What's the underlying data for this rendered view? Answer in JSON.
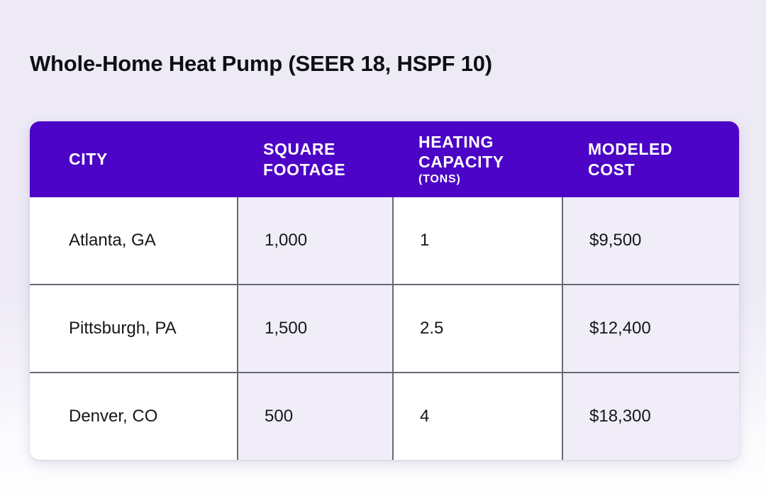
{
  "page": {
    "title": "Whole-Home Heat Pump (SEER 18, HSPF 10)",
    "colors": {
      "background": "#edeaf6",
      "header_bg": "#4c04c6",
      "header_text": "#ffffff",
      "cell_bg": "#ffffff",
      "cell_alt_bg": "#f0edf9",
      "grid_border": "#6b6875",
      "text": "#17161b"
    }
  },
  "table": {
    "columns": [
      {
        "label": "CITY",
        "sublabel": ""
      },
      {
        "label": "SQUARE FOOTAGE",
        "sublabel": ""
      },
      {
        "label": "HEATING CAPACITY",
        "sublabel": "(TONS)"
      },
      {
        "label": "MODELED COST",
        "sublabel": ""
      }
    ],
    "rows": [
      {
        "city": "Atlanta, GA",
        "square_footage": "1,000",
        "heating_capacity": "1",
        "modeled_cost": "$9,500"
      },
      {
        "city": "Pittsburgh, PA",
        "square_footage": "1,500",
        "heating_capacity": "2.5",
        "modeled_cost": "$12,400"
      },
      {
        "city": "Denver, CO",
        "square_footage": "500",
        "heating_capacity": "4",
        "modeled_cost": "$18,300"
      }
    ]
  },
  "chart_data": {
    "type": "table",
    "title": "Whole-Home Heat Pump (SEER 18, HSPF 10)",
    "columns": [
      "CITY",
      "SQUARE FOOTAGE",
      "HEATING CAPACITY (TONS)",
      "MODELED COST"
    ],
    "rows": [
      [
        "Atlanta, GA",
        "1,000",
        "1",
        "$9,500"
      ],
      [
        "Pittsburgh, PA",
        "1,500",
        "2.5",
        "$12,400"
      ],
      [
        "Denver, CO",
        "500",
        "4",
        "$18,300"
      ]
    ],
    "numeric": {
      "square_footage": [
        1000,
        1500,
        500
      ],
      "heating_capacity_tons": [
        1,
        2.5,
        4
      ],
      "modeled_cost_usd": [
        9500,
        12400,
        18300
      ]
    }
  }
}
